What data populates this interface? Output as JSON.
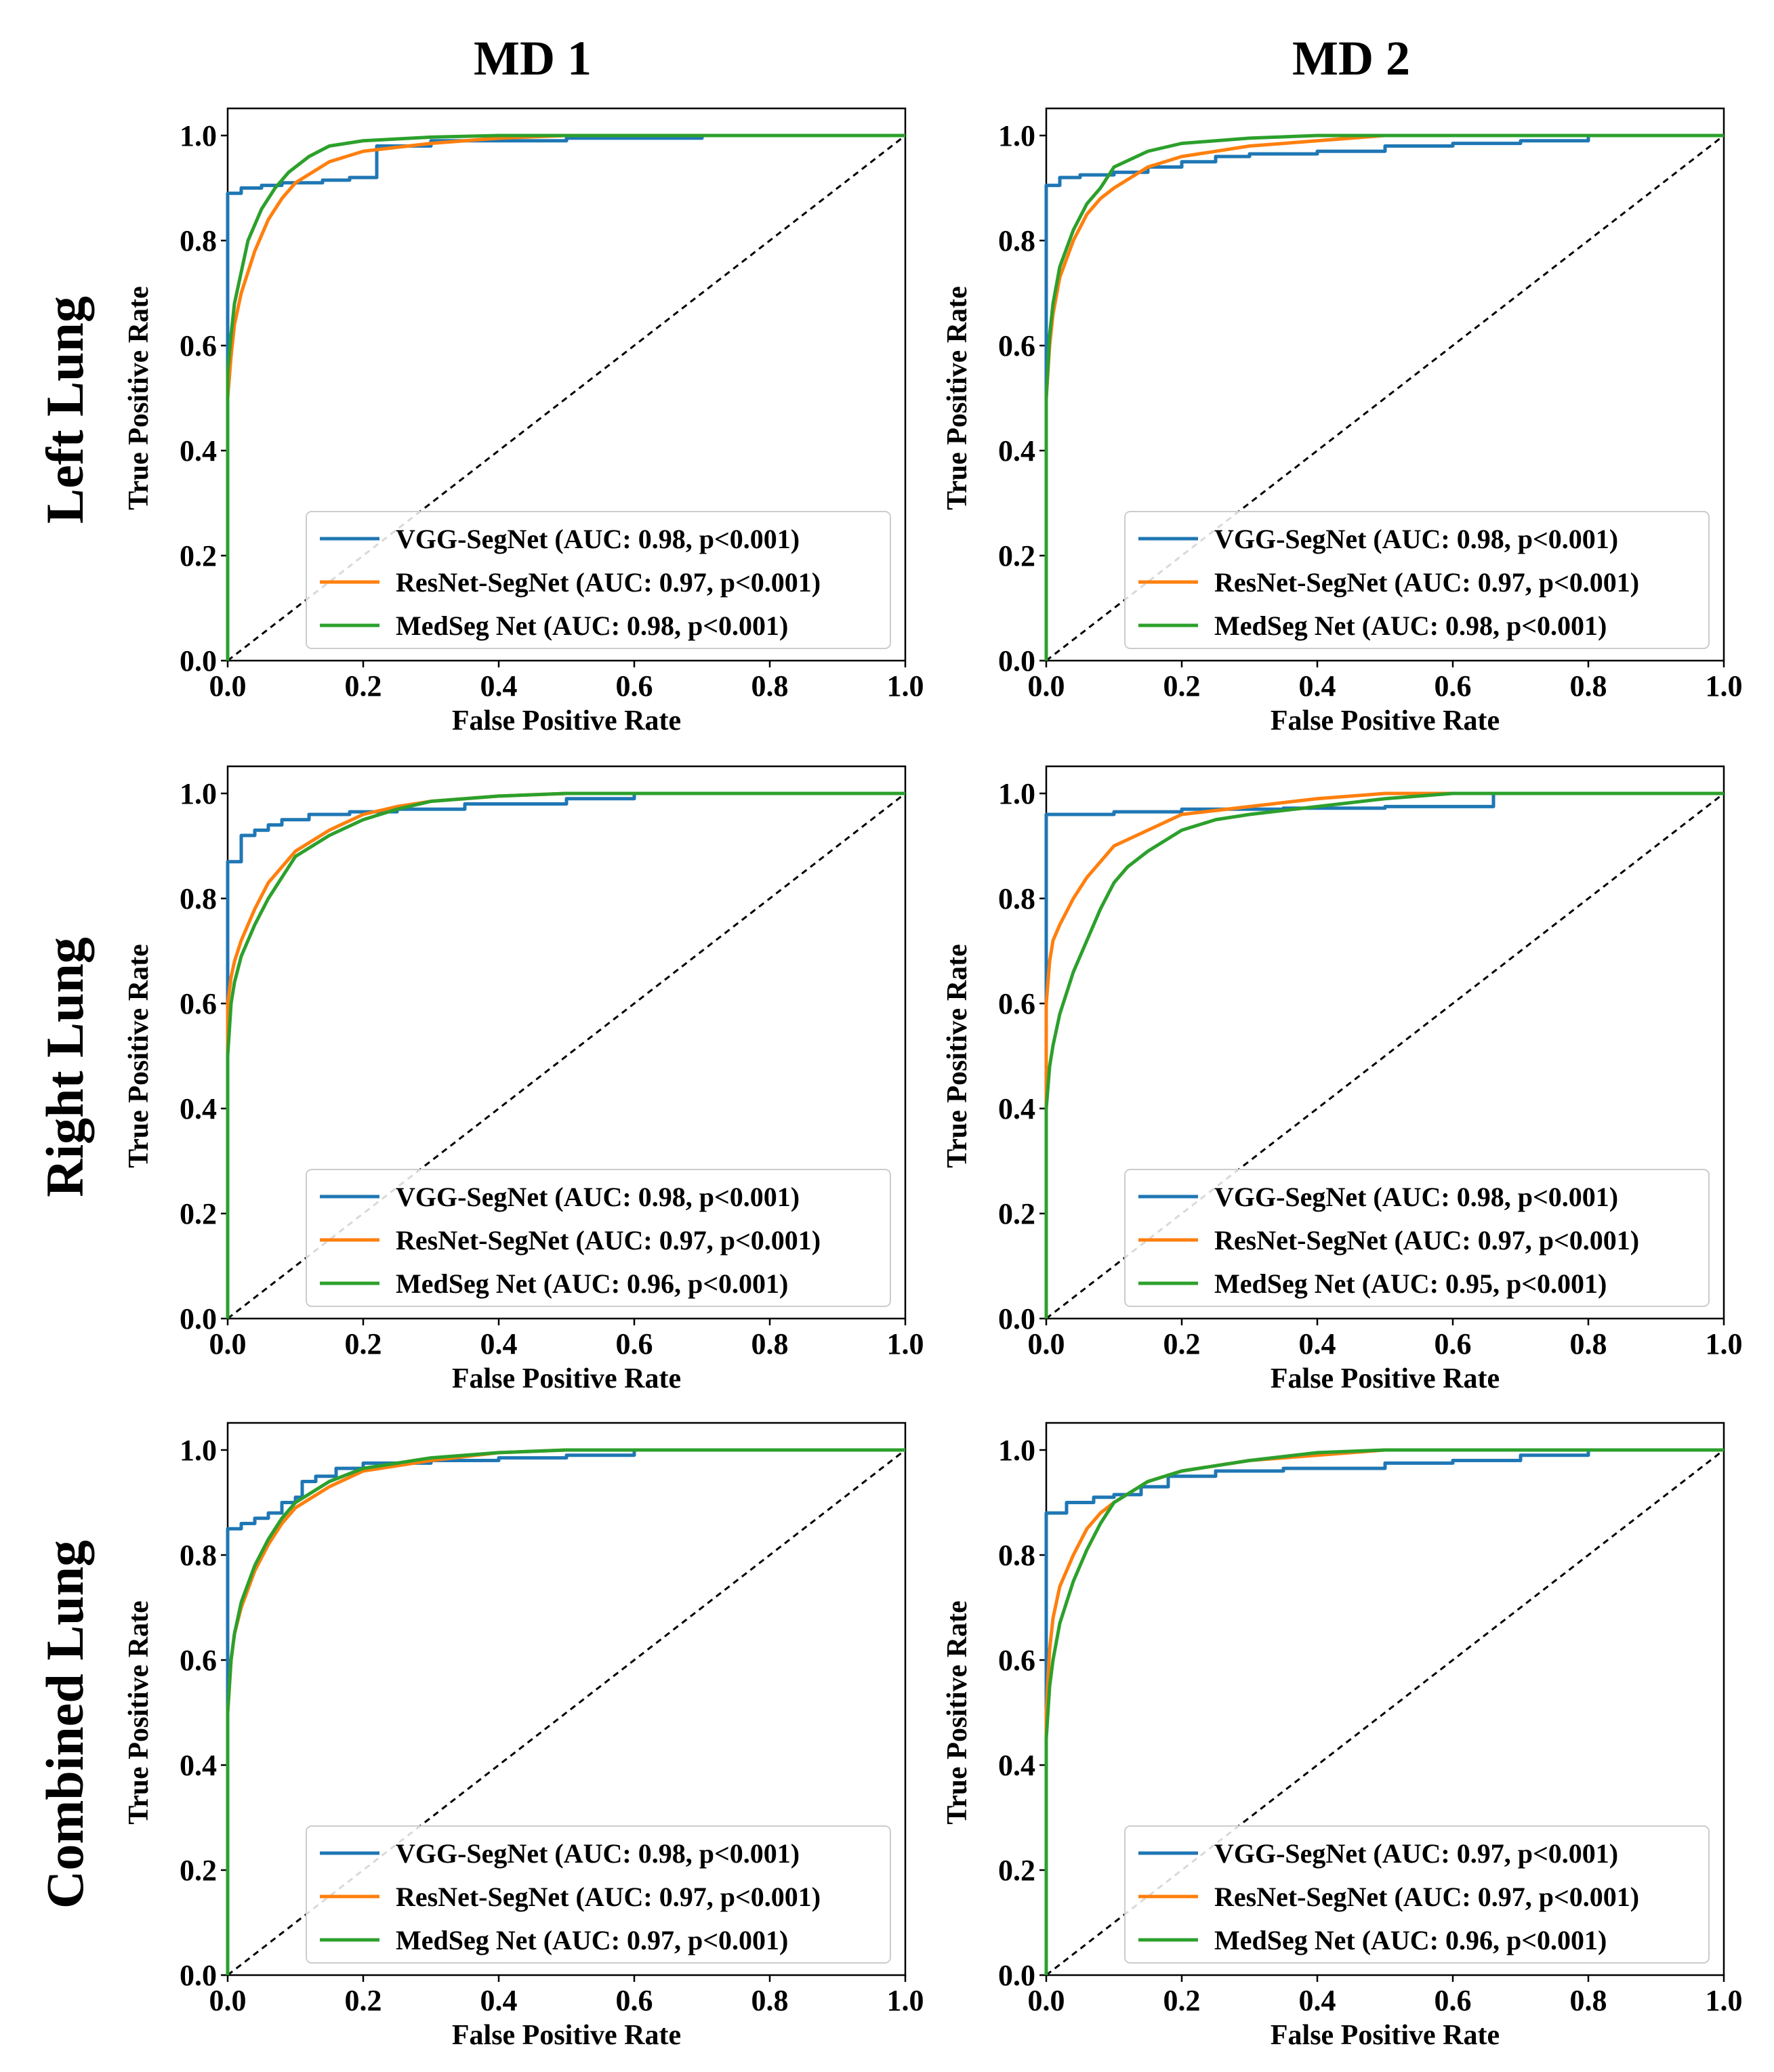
{
  "column_titles": [
    "MD 1",
    "MD 2"
  ],
  "row_titles": [
    "Left Lung",
    "Right Lung",
    "Combined Lung"
  ],
  "colors": {
    "vgg": "#1f77b4",
    "resnet": "#ff7f0e",
    "medseg": "#2ca02c",
    "diagonal": "#000000"
  },
  "chart_data": [
    {
      "id": "left-md1",
      "type": "line",
      "title": "",
      "xlabel": "False Positive Rate",
      "ylabel": "True Positive Rate",
      "xlim": [
        0,
        1
      ],
      "ylim": [
        0,
        1
      ],
      "xticks": [
        "0.0",
        "0.2",
        "0.4",
        "0.6",
        "0.8",
        "1.0"
      ],
      "yticks": [
        "0.0",
        "0.2",
        "0.4",
        "0.6",
        "0.8",
        "1.0"
      ],
      "legend_position": "lower-right",
      "series": [
        {
          "name": "VGG-SegNet",
          "legend": "VGG-SegNet (AUC: 0.98, p<0.001)",
          "auc": 0.98,
          "color": "#1f77b4",
          "step": true,
          "x": [
            0,
            0,
            0.02,
            0.05,
            0.08,
            0.1,
            0.14,
            0.18,
            0.22,
            0.22,
            0.3,
            0.5,
            0.7,
            1.0
          ],
          "y": [
            0,
            0.89,
            0.9,
            0.905,
            0.91,
            0.91,
            0.915,
            0.92,
            0.93,
            0.98,
            0.99,
            0.995,
            1.0,
            1.0
          ]
        },
        {
          "name": "ResNet-SegNet",
          "legend": "ResNet-SegNet (AUC: 0.97, p<0.001)",
          "auc": 0.97,
          "color": "#ff7f0e",
          "step": false,
          "x": [
            0,
            0,
            0.005,
            0.01,
            0.02,
            0.04,
            0.06,
            0.08,
            0.1,
            0.15,
            0.2,
            0.3,
            0.4,
            0.5,
            1.0
          ],
          "y": [
            0,
            0.5,
            0.58,
            0.64,
            0.7,
            0.78,
            0.84,
            0.88,
            0.91,
            0.95,
            0.97,
            0.985,
            0.995,
            1.0,
            1.0
          ]
        },
        {
          "name": "MedSeg Net",
          "legend": "MedSeg Net (AUC: 0.98, p<0.001)",
          "auc": 0.98,
          "color": "#2ca02c",
          "step": false,
          "x": [
            0,
            0,
            0.005,
            0.01,
            0.02,
            0.03,
            0.05,
            0.07,
            0.09,
            0.12,
            0.15,
            0.2,
            0.3,
            0.4,
            1.0
          ],
          "y": [
            0,
            0.55,
            0.62,
            0.68,
            0.74,
            0.8,
            0.86,
            0.9,
            0.93,
            0.96,
            0.98,
            0.99,
            0.997,
            1.0,
            1.0
          ]
        }
      ]
    },
    {
      "id": "left-md2",
      "type": "line",
      "title": "",
      "xlabel": "False Positive Rate",
      "ylabel": "True Positive Rate",
      "xlim": [
        0,
        1
      ],
      "ylim": [
        0,
        1
      ],
      "xticks": [
        "0.0",
        "0.2",
        "0.4",
        "0.6",
        "0.8",
        "1.0"
      ],
      "yticks": [
        "0.0",
        "0.2",
        "0.4",
        "0.6",
        "0.8",
        "1.0"
      ],
      "legend_position": "lower-right",
      "series": [
        {
          "name": "VGG-SegNet",
          "legend": "VGG-SegNet (AUC: 0.98, p<0.001)",
          "auc": 0.98,
          "color": "#1f77b4",
          "step": true,
          "x": [
            0,
            0,
            0.02,
            0.05,
            0.1,
            0.15,
            0.2,
            0.25,
            0.3,
            0.4,
            0.5,
            0.6,
            0.7,
            0.8,
            1.0
          ],
          "y": [
            0,
            0.905,
            0.92,
            0.925,
            0.93,
            0.94,
            0.95,
            0.96,
            0.965,
            0.97,
            0.98,
            0.985,
            0.99,
            1.0,
            1.0
          ]
        },
        {
          "name": "ResNet-SegNet",
          "legend": "ResNet-SegNet (AUC: 0.97, p<0.001)",
          "auc": 0.97,
          "color": "#ff7f0e",
          "step": false,
          "x": [
            0,
            0,
            0.005,
            0.01,
            0.02,
            0.04,
            0.06,
            0.08,
            0.1,
            0.15,
            0.2,
            0.3,
            0.4,
            0.5,
            1.0
          ],
          "y": [
            0,
            0.5,
            0.6,
            0.66,
            0.73,
            0.8,
            0.85,
            0.88,
            0.9,
            0.94,
            0.96,
            0.98,
            0.99,
            1.0,
            1.0
          ]
        },
        {
          "name": "MedSeg Net",
          "legend": "MedSeg Net (AUC: 0.98, p<0.001)",
          "auc": 0.98,
          "color": "#2ca02c",
          "step": false,
          "x": [
            0,
            0,
            0.005,
            0.01,
            0.02,
            0.04,
            0.06,
            0.08,
            0.1,
            0.15,
            0.2,
            0.3,
            0.4,
            1.0
          ],
          "y": [
            0,
            0.5,
            0.62,
            0.68,
            0.75,
            0.82,
            0.87,
            0.9,
            0.94,
            0.97,
            0.985,
            0.995,
            1.0,
            1.0
          ]
        }
      ]
    },
    {
      "id": "right-md1",
      "type": "line",
      "title": "",
      "xlabel": "False Positive Rate",
      "ylabel": "True Positive Rate",
      "xlim": [
        0,
        1
      ],
      "ylim": [
        0,
        1
      ],
      "xticks": [
        "0.0",
        "0.2",
        "0.4",
        "0.6",
        "0.8",
        "1.0"
      ],
      "yticks": [
        "0.0",
        "0.2",
        "0.4",
        "0.6",
        "0.8",
        "1.0"
      ],
      "legend_position": "lower-right",
      "series": [
        {
          "name": "VGG-SegNet",
          "legend": "VGG-SegNet (AUC: 0.98, p<0.001)",
          "auc": 0.98,
          "color": "#1f77b4",
          "step": true,
          "x": [
            0,
            0,
            0.02,
            0.02,
            0.04,
            0.06,
            0.08,
            0.12,
            0.18,
            0.25,
            0.35,
            0.5,
            0.6,
            1.0
          ],
          "y": [
            0,
            0.87,
            0.87,
            0.92,
            0.93,
            0.94,
            0.95,
            0.96,
            0.965,
            0.97,
            0.98,
            0.99,
            1.0,
            1.0
          ]
        },
        {
          "name": "ResNet-SegNet",
          "legend": "ResNet-SegNet (AUC: 0.97, p<0.001)",
          "auc": 0.97,
          "color": "#ff7f0e",
          "step": false,
          "x": [
            0,
            0,
            0.005,
            0.01,
            0.02,
            0.04,
            0.06,
            0.08,
            0.1,
            0.15,
            0.2,
            0.25,
            0.3,
            0.4,
            0.5,
            1.0
          ],
          "y": [
            0,
            0.6,
            0.65,
            0.68,
            0.72,
            0.78,
            0.83,
            0.86,
            0.89,
            0.93,
            0.96,
            0.975,
            0.985,
            0.995,
            1.0,
            1.0
          ]
        },
        {
          "name": "MedSeg Net",
          "legend": "MedSeg Net (AUC: 0.96, p<0.001)",
          "auc": 0.96,
          "color": "#2ca02c",
          "step": false,
          "x": [
            0,
            0,
            0.005,
            0.01,
            0.02,
            0.04,
            0.06,
            0.08,
            0.1,
            0.15,
            0.2,
            0.25,
            0.3,
            0.4,
            0.5,
            1.0
          ],
          "y": [
            0,
            0.5,
            0.6,
            0.64,
            0.69,
            0.75,
            0.8,
            0.84,
            0.88,
            0.92,
            0.95,
            0.97,
            0.985,
            0.995,
            1.0,
            1.0
          ]
        }
      ]
    },
    {
      "id": "right-md2",
      "type": "line",
      "title": "",
      "xlabel": "False Positive Rate",
      "ylabel": "True Positive Rate",
      "xlim": [
        0,
        1
      ],
      "ylim": [
        0,
        1
      ],
      "xticks": [
        "0.0",
        "0.2",
        "0.4",
        "0.6",
        "0.8",
        "1.0"
      ],
      "yticks": [
        "0.0",
        "0.2",
        "0.4",
        "0.6",
        "0.8",
        "1.0"
      ],
      "legend_position": "lower-right",
      "series": [
        {
          "name": "VGG-SegNet",
          "legend": "VGG-SegNet (AUC: 0.98, p<0.001)",
          "auc": 0.98,
          "color": "#1f77b4",
          "step": true,
          "x": [
            0,
            0,
            0.1,
            0.2,
            0.35,
            0.5,
            0.66,
            0.66,
            1.0
          ],
          "y": [
            0,
            0.96,
            0.965,
            0.97,
            0.972,
            0.975,
            0.975,
            1.0,
            1.0
          ]
        },
        {
          "name": "ResNet-SegNet",
          "legend": "ResNet-SegNet (AUC: 0.97, p<0.001)",
          "auc": 0.97,
          "color": "#ff7f0e",
          "step": false,
          "x": [
            0,
            0,
            0.005,
            0.01,
            0.02,
            0.04,
            0.06,
            0.08,
            0.1,
            0.15,
            0.2,
            0.3,
            0.4,
            0.5,
            1.0
          ],
          "y": [
            0,
            0.6,
            0.68,
            0.72,
            0.75,
            0.8,
            0.84,
            0.87,
            0.9,
            0.93,
            0.96,
            0.975,
            0.99,
            1.0,
            1.0
          ]
        },
        {
          "name": "MedSeg Net",
          "legend": "MedSeg Net (AUC: 0.95, p<0.001)",
          "auc": 0.95,
          "color": "#2ca02c",
          "step": false,
          "x": [
            0,
            0,
            0.005,
            0.01,
            0.02,
            0.04,
            0.06,
            0.08,
            0.1,
            0.12,
            0.15,
            0.2,
            0.25,
            0.3,
            0.4,
            0.5,
            0.6,
            1.0
          ],
          "y": [
            0,
            0.4,
            0.48,
            0.52,
            0.58,
            0.66,
            0.72,
            0.78,
            0.83,
            0.86,
            0.89,
            0.93,
            0.95,
            0.96,
            0.975,
            0.99,
            1.0,
            1.0
          ]
        }
      ]
    },
    {
      "id": "combined-md1",
      "type": "line",
      "title": "",
      "xlabel": "False Positive Rate",
      "ylabel": "True Positive Rate",
      "xlim": [
        0,
        1
      ],
      "ylim": [
        0,
        1
      ],
      "xticks": [
        "0.0",
        "0.2",
        "0.4",
        "0.6",
        "0.8",
        "1.0"
      ],
      "yticks": [
        "0.0",
        "0.2",
        "0.4",
        "0.6",
        "0.8",
        "1.0"
      ],
      "legend_position": "lower-right",
      "series": [
        {
          "name": "VGG-SegNet",
          "legend": "VGG-SegNet (AUC: 0.98, p<0.001)",
          "auc": 0.98,
          "color": "#1f77b4",
          "step": true,
          "x": [
            0,
            0,
            0.02,
            0.04,
            0.06,
            0.08,
            0.1,
            0.11,
            0.13,
            0.16,
            0.2,
            0.3,
            0.4,
            0.5,
            0.6,
            1.0
          ],
          "y": [
            0,
            0.85,
            0.86,
            0.87,
            0.88,
            0.9,
            0.91,
            0.94,
            0.95,
            0.965,
            0.975,
            0.98,
            0.985,
            0.99,
            1.0,
            1.0
          ]
        },
        {
          "name": "ResNet-SegNet",
          "legend": "ResNet-SegNet (AUC: 0.97, p<0.001)",
          "auc": 0.97,
          "color": "#ff7f0e",
          "step": false,
          "x": [
            0,
            0,
            0.005,
            0.01,
            0.02,
            0.04,
            0.06,
            0.08,
            0.1,
            0.15,
            0.2,
            0.3,
            0.4,
            0.5,
            1.0
          ],
          "y": [
            0,
            0.5,
            0.6,
            0.65,
            0.7,
            0.77,
            0.82,
            0.86,
            0.89,
            0.93,
            0.96,
            0.98,
            0.995,
            1.0,
            1.0
          ]
        },
        {
          "name": "MedSeg Net",
          "legend": "MedSeg Net (AUC: 0.97, p<0.001)",
          "auc": 0.97,
          "color": "#2ca02c",
          "step": false,
          "x": [
            0,
            0,
            0.005,
            0.01,
            0.02,
            0.04,
            0.06,
            0.08,
            0.1,
            0.15,
            0.2,
            0.3,
            0.4,
            0.5,
            1.0
          ],
          "y": [
            0,
            0.5,
            0.6,
            0.65,
            0.71,
            0.78,
            0.83,
            0.87,
            0.9,
            0.94,
            0.965,
            0.985,
            0.995,
            1.0,
            1.0
          ]
        }
      ]
    },
    {
      "id": "combined-md2",
      "type": "line",
      "title": "",
      "xlabel": "False Positive Rate",
      "ylabel": "True Positive Rate",
      "xlim": [
        0,
        1
      ],
      "ylim": [
        0,
        1
      ],
      "xticks": [
        "0.0",
        "0.2",
        "0.4",
        "0.6",
        "0.8",
        "1.0"
      ],
      "yticks": [
        "0.0",
        "0.2",
        "0.4",
        "0.6",
        "0.8",
        "1.0"
      ],
      "legend_position": "lower-right",
      "series": [
        {
          "name": "VGG-SegNet",
          "legend": "VGG-SegNet (AUC: 0.97, p<0.001)",
          "auc": 0.97,
          "color": "#1f77b4",
          "step": true,
          "x": [
            0,
            0,
            0.03,
            0.03,
            0.07,
            0.1,
            0.14,
            0.18,
            0.25,
            0.35,
            0.5,
            0.6,
            0.7,
            0.8,
            1.0
          ],
          "y": [
            0,
            0.88,
            0.88,
            0.9,
            0.91,
            0.915,
            0.93,
            0.95,
            0.96,
            0.965,
            0.975,
            0.98,
            0.99,
            1.0,
            1.0
          ]
        },
        {
          "name": "ResNet-SegNet",
          "legend": "ResNet-SegNet (AUC: 0.97, p<0.001)",
          "auc": 0.97,
          "color": "#ff7f0e",
          "step": false,
          "x": [
            0,
            0,
            0.005,
            0.01,
            0.02,
            0.04,
            0.06,
            0.08,
            0.1,
            0.15,
            0.2,
            0.3,
            0.4,
            0.5,
            1.0
          ],
          "y": [
            0,
            0.5,
            0.62,
            0.68,
            0.74,
            0.8,
            0.85,
            0.88,
            0.9,
            0.94,
            0.96,
            0.98,
            0.99,
            1.0,
            1.0
          ]
        },
        {
          "name": "MedSeg Net",
          "legend": "MedSeg Net (AUC: 0.96, p<0.001)",
          "auc": 0.96,
          "color": "#2ca02c",
          "step": false,
          "x": [
            0,
            0,
            0.005,
            0.01,
            0.02,
            0.04,
            0.06,
            0.08,
            0.1,
            0.15,
            0.2,
            0.3,
            0.4,
            0.5,
            1.0
          ],
          "y": [
            0,
            0.45,
            0.55,
            0.6,
            0.67,
            0.75,
            0.81,
            0.86,
            0.9,
            0.94,
            0.96,
            0.98,
            0.995,
            1.0,
            1.0
          ]
        }
      ]
    }
  ]
}
